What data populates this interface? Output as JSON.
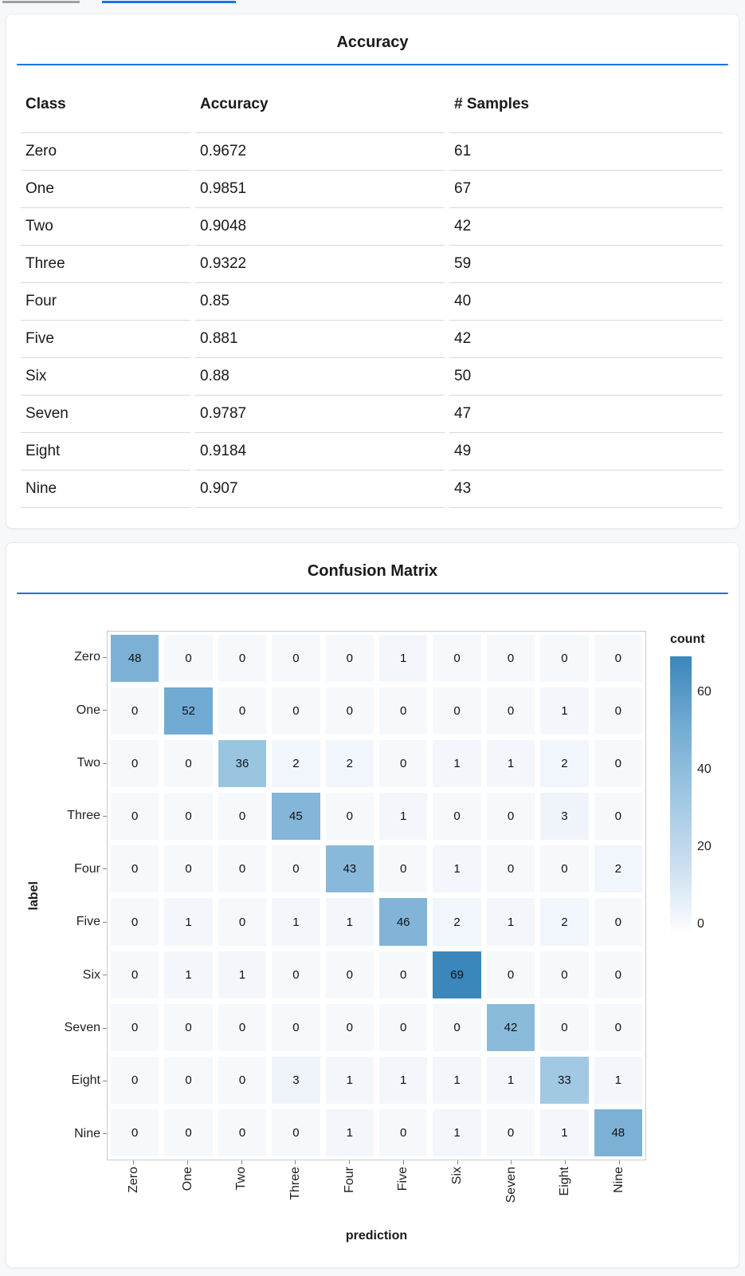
{
  "theme": {
    "page_bg": "#f7f8f9",
    "card_bg": "#ffffff",
    "accent_blue": "#1a73e8",
    "inactive_tab_gray": "#9aa0a6",
    "table_separator": "#d8d8d8",
    "plot_border": "#cbcbcb",
    "text_color": "#1a1a1a"
  },
  "chart_data": [
    {
      "type": "table",
      "title": "Accuracy",
      "columns": [
        "Class",
        "Accuracy",
        "# Samples"
      ],
      "rows": [
        [
          "Zero",
          "0.9672",
          "61"
        ],
        [
          "One",
          "0.9851",
          "67"
        ],
        [
          "Two",
          "0.9048",
          "42"
        ],
        [
          "Three",
          "0.9322",
          "59"
        ],
        [
          "Four",
          "0.85",
          "40"
        ],
        [
          "Five",
          "0.881",
          "42"
        ],
        [
          "Six",
          "0.88",
          "50"
        ],
        [
          "Seven",
          "0.9787",
          "47"
        ],
        [
          "Eight",
          "0.9184",
          "49"
        ],
        [
          "Nine",
          "0.907",
          "43"
        ]
      ]
    },
    {
      "type": "heatmap",
      "title": "Confusion Matrix",
      "xlabel": "prediction",
      "ylabel": "label",
      "x_categories": [
        "Zero",
        "One",
        "Two",
        "Three",
        "Four",
        "Five",
        "Six",
        "Seven",
        "Eight",
        "Nine"
      ],
      "y_categories": [
        "Zero",
        "One",
        "Two",
        "Three",
        "Four",
        "Five",
        "Six",
        "Seven",
        "Eight",
        "Nine"
      ],
      "values": [
        [
          48,
          0,
          0,
          0,
          0,
          1,
          0,
          0,
          0,
          0
        ],
        [
          0,
          52,
          0,
          0,
          0,
          0,
          0,
          0,
          1,
          0
        ],
        [
          0,
          0,
          36,
          2,
          2,
          0,
          1,
          1,
          2,
          0
        ],
        [
          0,
          0,
          0,
          45,
          0,
          1,
          0,
          0,
          3,
          0
        ],
        [
          0,
          0,
          0,
          0,
          43,
          0,
          1,
          0,
          0,
          2
        ],
        [
          0,
          1,
          0,
          1,
          1,
          46,
          2,
          1,
          2,
          0
        ],
        [
          0,
          1,
          1,
          0,
          0,
          0,
          69,
          0,
          0,
          0
        ],
        [
          0,
          0,
          0,
          0,
          0,
          0,
          0,
          42,
          0,
          0
        ],
        [
          0,
          0,
          0,
          3,
          1,
          1,
          1,
          1,
          33,
          1
        ],
        [
          0,
          0,
          0,
          0,
          1,
          0,
          1,
          0,
          1,
          48
        ]
      ],
      "color_domain": [
        0,
        69
      ],
      "color_scale": [
        "#f5f9fc",
        "#cadef0",
        "#9ec7e2",
        "#72abd2",
        "#3b86ba"
      ],
      "legend": {
        "title": "count",
        "ticks": [
          60,
          40,
          20,
          0
        ]
      },
      "grid": false,
      "legend_position": "right"
    }
  ]
}
